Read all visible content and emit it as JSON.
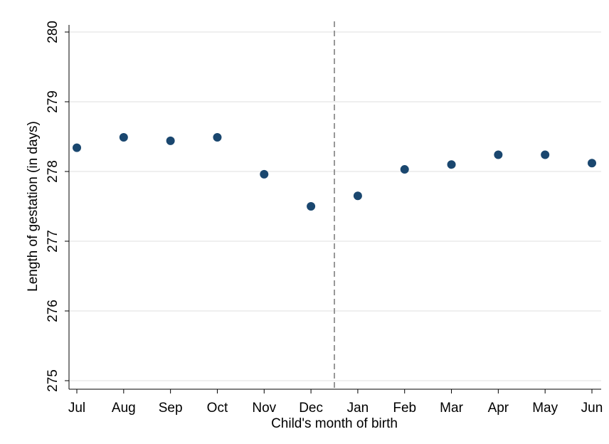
{
  "chart_data": {
    "type": "scatter",
    "x_label": "Child's month of birth",
    "y_label": "Length of gestation (in days)",
    "categories": [
      "Jul",
      "Aug",
      "Sep",
      "Oct",
      "Nov",
      "Dec",
      "Jan",
      "Feb",
      "Mar",
      "Apr",
      "May",
      "Jun"
    ],
    "values": [
      278.34,
      278.49,
      278.44,
      278.49,
      277.96,
      277.5,
      277.65,
      278.03,
      278.1,
      278.24,
      278.24,
      278.12
    ],
    "color": "#1a476f",
    "ylim": [
      275,
      280
    ],
    "yticks": [
      275,
      276,
      277,
      278,
      279,
      280
    ],
    "grid": true
  }
}
